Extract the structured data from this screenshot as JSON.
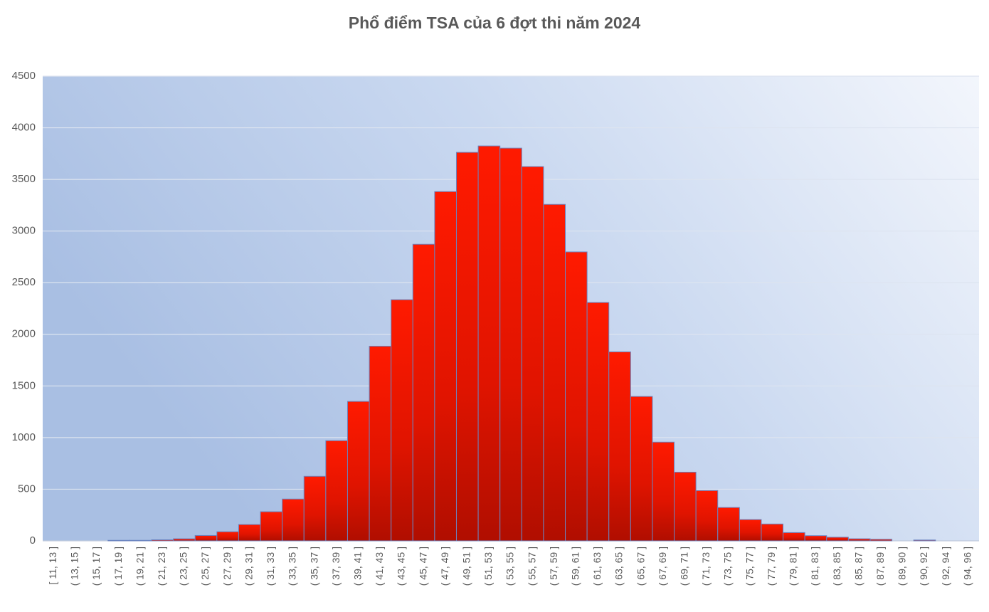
{
  "chart_data": {
    "type": "bar",
    "title": "Phổ điểm TSA của 6 đợt thi năm 2024",
    "categories": [
      "[ 11, 13 ]",
      "( 13, 15 ]",
      "( 15, 17 ]",
      "( 17, 19 ]",
      "( 19, 21 ]",
      "( 21, 23 ]",
      "( 23, 25 ]",
      "( 25, 27 ]",
      "( 27, 29 ]",
      "( 29, 31 ]",
      "( 31, 33 ]",
      "( 33, 35 ]",
      "( 35, 37 ]",
      "( 37, 39 ]",
      "( 39, 41 ]",
      "( 41, 43 ]",
      "( 43, 45 ]",
      "( 45, 47 ]",
      "( 47, 49 ]",
      "( 49, 51 ]",
      "( 51, 53 ]",
      "( 53, 55 ]",
      "( 55, 57 ]",
      "( 57, 59 ]",
      "( 59, 61 ]",
      "( 61, 63 ]",
      "( 63, 65 ]",
      "( 65, 67 ]",
      "( 67, 69 ]",
      "( 69, 71 ]",
      "( 71, 73 ]",
      "( 73, 75 ]",
      "( 75, 77 ]",
      "( 77, 79 ]",
      "( 79, 81 ]",
      "( 81, 83 ]",
      "( 83, 85 ]",
      "( 85, 87 ]",
      "( 87, 89 ]",
      "( 89, 90 ]",
      "( 90, 92 ]",
      "( 92, 94 ]",
      "( 94, 96 ]"
    ],
    "values": [
      0,
      0,
      0,
      5,
      5,
      10,
      20,
      52,
      88,
      158,
      282,
      405,
      625,
      970,
      1350,
      1885,
      2335,
      2872,
      3382,
      3762,
      3824,
      3803,
      3624,
      3258,
      2798,
      2308,
      1830,
      1398,
      956,
      665,
      487,
      323,
      206,
      163,
      80,
      50,
      35,
      20,
      15,
      0,
      8,
      0,
      0
    ],
    "color": "#ff1a00",
    "ylim": [
      0,
      4500
    ],
    "yticks": [
      0,
      500,
      1000,
      1500,
      2000,
      2500,
      3000,
      3500,
      4000,
      4500
    ],
    "grid": true
  }
}
